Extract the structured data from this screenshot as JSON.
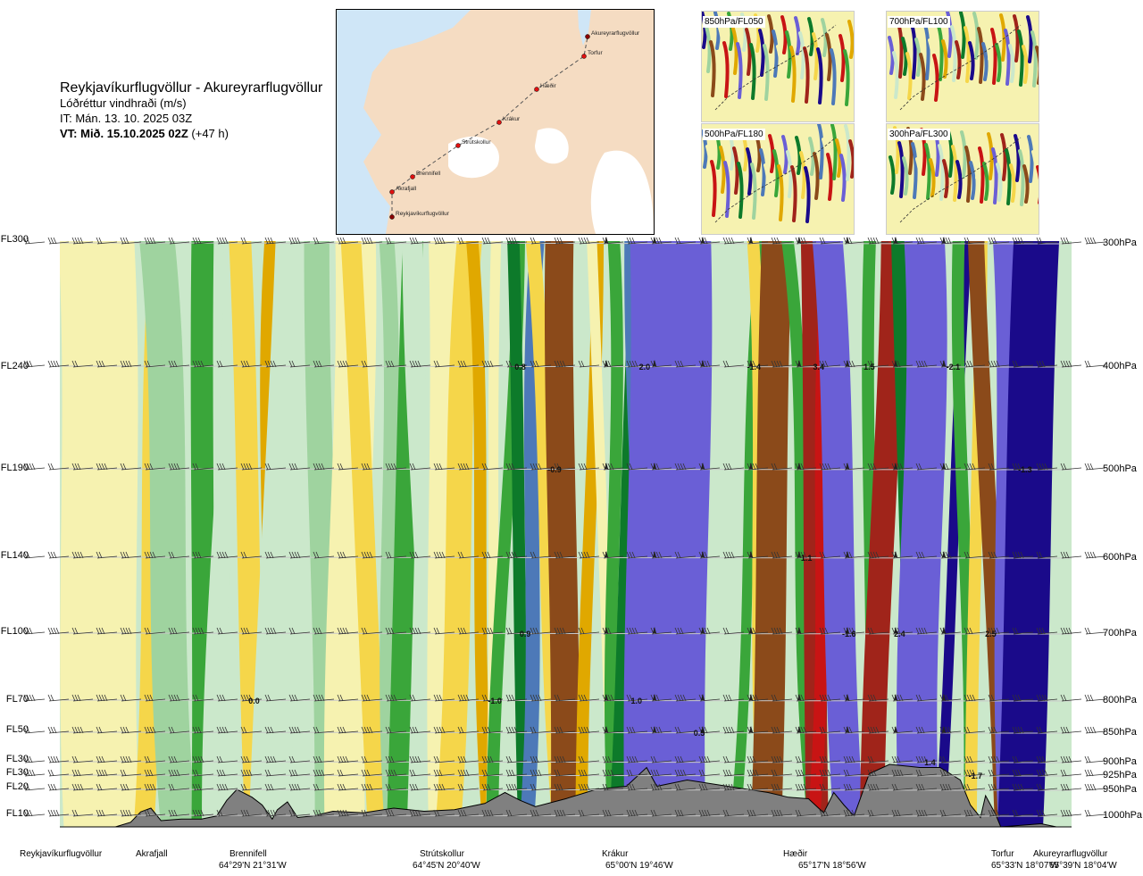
{
  "header": {
    "route": "Reykjavíkurflugvöllur - Akureyrarflugvöllur",
    "parameter": "Lóðréttur vindhraði (m/s)",
    "issue": "IT: Mán. 13. 10. 2025 03Z",
    "valid_bold": "VT: Mið. 15.10.2025 02Z",
    "valid_lead": " (+47 h)"
  },
  "map": {
    "places": [
      {
        "name": "Akureyrarflugvöllur"
      },
      {
        "name": "Torfur"
      },
      {
        "name": "Hæðir"
      },
      {
        "name": "Krákur"
      },
      {
        "name": "Strútskollur"
      },
      {
        "name": "Brennifell"
      },
      {
        "name": "Akrafjall"
      },
      {
        "name": "Reykjavíkurflugvöllur"
      }
    ]
  },
  "thumbnails": [
    {
      "label": "850hPa/FL050"
    },
    {
      "label": "700hPa/FL100"
    },
    {
      "label": "500hPa/FL180"
    },
    {
      "label": "300hPa/FL300"
    }
  ],
  "colors": {
    "terrain": "#808080",
    "series": [
      "#1a0a8a",
      "#6a5fd6",
      "#4d79b8",
      "#0d7a2a",
      "#3aa63a",
      "#9fd39f",
      "#cbe8cb",
      "#f6f2b0",
      "#f5d64a",
      "#e0a800",
      "#8b4a1a",
      "#a0241a",
      "#c81414"
    ]
  },
  "chart_data": {
    "type": "heatmap",
    "title": "Lóðréttur vindhraði (m/s)",
    "xlabel": "",
    "ylabel": "",
    "flight_levels": [
      "FL300",
      "FL240",
      "FL190",
      "FL140",
      "FL100",
      "FL70",
      "FL50",
      "FL30",
      "FL30",
      "FL20",
      "FL10"
    ],
    "pressure_levels": [
      "300hPa",
      "400hPa",
      "500hPa",
      "600hPa",
      "700hPa",
      "800hPa",
      "850hPa",
      "900hPa",
      "925hPa",
      "950hPa",
      "1000hPa"
    ],
    "pressure_values": [
      300,
      400,
      500,
      600,
      700,
      800,
      850,
      900,
      925,
      950,
      1000
    ],
    "stations": [
      {
        "name": "Reykjavíkurflugvöllur",
        "coord": "",
        "dist": 0.0
      },
      {
        "name": "Akrafjall",
        "coord": "",
        "dist": 0.08
      },
      {
        "name": "Brennifell",
        "coord": "64°29'N 21°31'W",
        "dist": 0.175
      },
      {
        "name": "Strútskollur",
        "coord": "64°45'N 20°40'W",
        "dist": 0.375
      },
      {
        "name": "Krákur",
        "coord": "65°00'N 19°46'W",
        "dist": 0.565
      },
      {
        "name": "Hæðir",
        "coord": "65°17'N 18°56'W",
        "dist": 0.745
      },
      {
        "name": "Torfur",
        "coord": "65°33'N 18°07'W",
        "dist": 0.944
      },
      {
        "name": "Akureyrarflugvöllur",
        "coord": "65°39'N 18°04'W",
        "dist": 1.0
      }
    ],
    "value_labels": [
      {
        "text": "0.8",
        "dist": 0.455,
        "p": 400
      },
      {
        "text": "2.0",
        "dist": 0.578,
        "p": 400
      },
      {
        "text": "-1.4",
        "dist": 0.686,
        "p": 400
      },
      {
        "text": "3.4",
        "dist": 0.75,
        "p": 400
      },
      {
        "text": "1.5",
        "dist": 0.8,
        "p": 400
      },
      {
        "text": "-2.1",
        "dist": 0.883,
        "p": 400
      },
      {
        "text": "-0.9",
        "dist": 0.489,
        "p": 500
      },
      {
        "text": "-1.3",
        "dist": 0.954,
        "p": 500
      },
      {
        "text": "1.1",
        "dist": 0.738,
        "p": 600
      },
      {
        "text": "0.9",
        "dist": 0.46,
        "p": 700
      },
      {
        "text": "-1.6",
        "dist": 0.78,
        "p": 700
      },
      {
        "text": "2.4",
        "dist": 0.83,
        "p": 700
      },
      {
        "text": "2.5",
        "dist": 0.92,
        "p": 700
      },
      {
        "text": "0.0",
        "dist": 0.192,
        "p": 800
      },
      {
        "text": "-1.0",
        "dist": 0.43,
        "p": 800
      },
      {
        "text": "1.0",
        "dist": 0.57,
        "p": 800
      },
      {
        "text": "0.5",
        "dist": 0.632,
        "p": 850
      },
      {
        "text": "1.4",
        "dist": 0.86,
        "p": 900
      },
      {
        "text": "-1.7",
        "dist": 0.905,
        "p": 925
      }
    ],
    "bands": [
      {
        "dist": 0.0,
        "width": 0.05,
        "color": "#cbe8cb"
      },
      {
        "dist": 0.035,
        "width": 0.075,
        "color": "#f6f2b0"
      },
      {
        "dist": 0.09,
        "width": 0.02,
        "color": "#f5d64a"
      },
      {
        "dist": 0.105,
        "width": 0.035,
        "color": "#9fd39f"
      },
      {
        "dist": 0.14,
        "width": 0.022,
        "color": "#3aa63a"
      },
      {
        "dist": 0.16,
        "width": 0.02,
        "color": "#cbe8cb"
      },
      {
        "dist": 0.185,
        "width": 0.022,
        "color": "#f5d64a"
      },
      {
        "dist": 0.205,
        "width": 0.012,
        "color": "#e0a800"
      },
      {
        "dist": 0.218,
        "width": 0.04,
        "color": "#cbe8cb"
      },
      {
        "dist": 0.258,
        "width": 0.025,
        "color": "#9fd39f"
      },
      {
        "dist": 0.285,
        "width": 0.04,
        "color": "#f6f2b0"
      },
      {
        "dist": 0.3,
        "width": 0.02,
        "color": "#f5d64a"
      },
      {
        "dist": 0.325,
        "width": 0.015,
        "color": "#9fd39f"
      },
      {
        "dist": 0.34,
        "width": 0.02,
        "color": "#3aa63a"
      },
      {
        "dist": 0.358,
        "width": 0.02,
        "color": "#cbe8cb"
      },
      {
        "dist": 0.378,
        "width": 0.03,
        "color": "#f6f2b0"
      },
      {
        "dist": 0.393,
        "width": 0.025,
        "color": "#f5d64a"
      },
      {
        "dist": 0.415,
        "width": 0.012,
        "color": "#e0a800"
      },
      {
        "dist": 0.428,
        "width": 0.01,
        "color": "#f6f2b0"
      },
      {
        "dist": 0.44,
        "width": 0.012,
        "color": "#3aa63a"
      },
      {
        "dist": 0.453,
        "width": 0.012,
        "color": "#0d7a2a"
      },
      {
        "dist": 0.466,
        "width": 0.014,
        "color": "#4d79b8"
      },
      {
        "dist": 0.48,
        "width": 0.014,
        "color": "#f5d64a"
      },
      {
        "dist": 0.495,
        "width": 0.028,
        "color": "#8b4a1a"
      },
      {
        "dist": 0.523,
        "width": 0.012,
        "color": "#e0a800"
      },
      {
        "dist": 0.536,
        "width": 0.01,
        "color": "#f6f2b0"
      },
      {
        "dist": 0.547,
        "width": 0.012,
        "color": "#3aa63a"
      },
      {
        "dist": 0.56,
        "width": 0.014,
        "color": "#0d7a2a"
      },
      {
        "dist": 0.575,
        "width": 0.02,
        "color": "#4d79b8"
      },
      {
        "dist": 0.597,
        "width": 0.08,
        "color": "#6a5fd6"
      },
      {
        "dist": 0.68,
        "width": 0.01,
        "color": "#3aa63a"
      },
      {
        "dist": 0.69,
        "width": 0.012,
        "color": "#f5d64a"
      },
      {
        "dist": 0.702,
        "width": 0.03,
        "color": "#8b4a1a"
      },
      {
        "dist": 0.732,
        "width": 0.012,
        "color": "#3aa63a"
      },
      {
        "dist": 0.745,
        "width": 0.022,
        "color": "#a0241a"
      },
      {
        "dist": 0.752,
        "width": 0.012,
        "color": "#c81414"
      },
      {
        "dist": 0.768,
        "width": 0.03,
        "color": "#6a5fd6"
      },
      {
        "dist": 0.8,
        "width": 0.012,
        "color": "#3aa63a"
      },
      {
        "dist": 0.812,
        "width": 0.024,
        "color": "#a0241a"
      },
      {
        "dist": 0.836,
        "width": 0.014,
        "color": "#0d7a2a"
      },
      {
        "dist": 0.85,
        "width": 0.04,
        "color": "#6a5fd6"
      },
      {
        "dist": 0.883,
        "width": 0.01,
        "color": "#1a0a8a"
      },
      {
        "dist": 0.893,
        "width": 0.012,
        "color": "#3aa63a"
      },
      {
        "dist": 0.905,
        "width": 0.012,
        "color": "#f5d64a"
      },
      {
        "dist": 0.918,
        "width": 0.016,
        "color": "#8b4a1a"
      },
      {
        "dist": 0.934,
        "width": 0.02,
        "color": "#6a5fd6"
      },
      {
        "dist": 0.955,
        "width": 0.045,
        "color": "#1a0a8a"
      }
    ],
    "terrain_height": [
      [
        0.0,
        0.0
      ],
      [
        0.055,
        0.0
      ],
      [
        0.07,
        0.15
      ],
      [
        0.08,
        0.48
      ],
      [
        0.09,
        0.6
      ],
      [
        0.1,
        0.2
      ],
      [
        0.12,
        0.25
      ],
      [
        0.14,
        0.25
      ],
      [
        0.155,
        0.35
      ],
      [
        0.165,
        0.85
      ],
      [
        0.175,
        1.2
      ],
      [
        0.19,
        0.95
      ],
      [
        0.2,
        0.7
      ],
      [
        0.21,
        0.25
      ],
      [
        0.215,
        0.55
      ],
      [
        0.225,
        0.8
      ],
      [
        0.235,
        0.3
      ],
      [
        0.25,
        0.35
      ],
      [
        0.27,
        0.5
      ],
      [
        0.3,
        0.45
      ],
      [
        0.33,
        0.6
      ],
      [
        0.36,
        0.5
      ],
      [
        0.39,
        0.55
      ],
      [
        0.42,
        0.75
      ],
      [
        0.44,
        1.1
      ],
      [
        0.455,
        0.85
      ],
      [
        0.47,
        0.65
      ],
      [
        0.5,
        0.9
      ],
      [
        0.53,
        1.2
      ],
      [
        0.56,
        1.3
      ],
      [
        0.58,
        1.9
      ],
      [
        0.59,
        1.3
      ],
      [
        0.62,
        1.5
      ],
      [
        0.66,
        1.3
      ],
      [
        0.7,
        1.1
      ],
      [
        0.72,
        0.95
      ],
      [
        0.74,
        0.9
      ],
      [
        0.755,
        0.45
      ],
      [
        0.765,
        1.1
      ],
      [
        0.775,
        0.7
      ],
      [
        0.785,
        0.35
      ],
      [
        0.8,
        1.7
      ],
      [
        0.82,
        2.0
      ],
      [
        0.85,
        1.9
      ],
      [
        0.87,
        1.9
      ],
      [
        0.89,
        1.5
      ],
      [
        0.9,
        0.7
      ],
      [
        0.91,
        0.3
      ],
      [
        0.915,
        1.0
      ],
      [
        0.925,
        0.4
      ],
      [
        0.93,
        0.0
      ],
      [
        0.95,
        0.05
      ],
      [
        0.97,
        0.1
      ],
      [
        0.985,
        0.0
      ],
      [
        1.0,
        0.0
      ]
    ],
    "grid": true,
    "legend": "none"
  }
}
